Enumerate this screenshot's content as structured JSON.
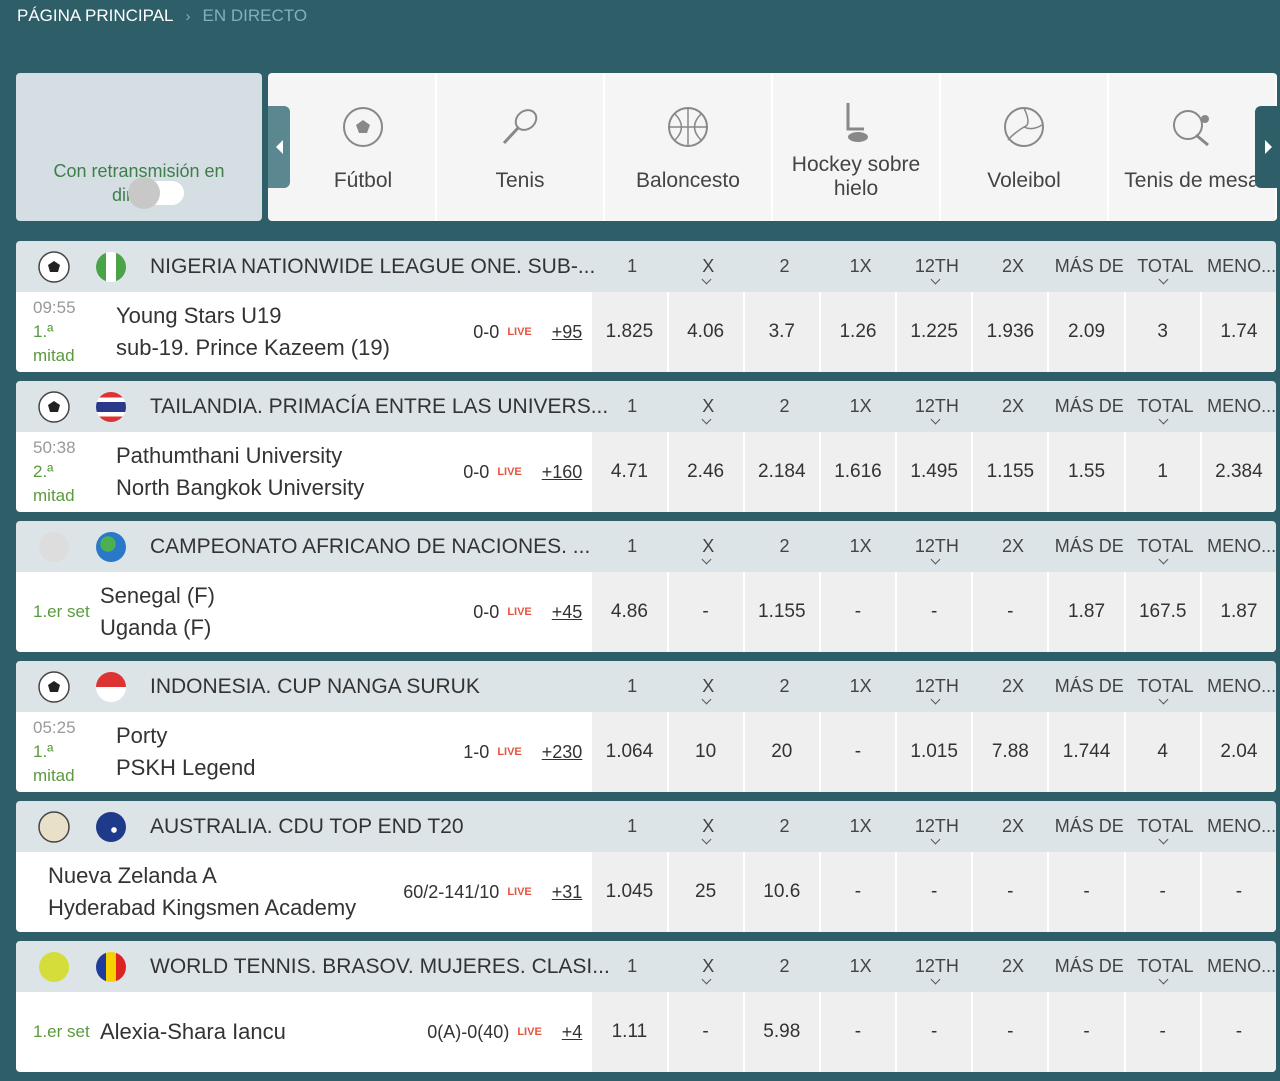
{
  "breadcrumb": [
    "PÁGINA PRINCIPAL",
    "EN DIRECTO"
  ],
  "live_toggle": "Con retransmisión en directo",
  "sports": [
    "Fútbol",
    "Tenis",
    "Baloncesto",
    "Hockey sobre hielo",
    "Voleibol",
    "Tenis de mesa"
  ],
  "columns": [
    "1",
    "X",
    "2",
    "1X",
    "12TH",
    "2X",
    "MÁS DE",
    "TOTAL",
    "MENO..."
  ],
  "live_label": "LIVE",
  "events": [
    {
      "league": "NIGERIA NATIONWIDE LEAGUE ONE. SUB-...",
      "time": "09:55",
      "period": "1.ª mitad",
      "teams": [
        "Young Stars U19",
        "sub-19. Prince Kazeem (19)"
      ],
      "score": "0-0",
      "more": "+95",
      "odds": [
        "1.825",
        "4.06",
        "3.7",
        "1.26",
        "1.225",
        "1.936",
        "2.09",
        "3",
        "1.74"
      ]
    },
    {
      "league": "TAILANDIA. PRIMACÍA ENTRE LAS UNIVERS...",
      "time": "50:38",
      "period": "2.ª mitad",
      "teams": [
        "Pathumthani University",
        "North Bangkok University"
      ],
      "score": "0-0",
      "more": "+160",
      "odds": [
        "4.71",
        "2.46",
        "2.184",
        "1.616",
        "1.495",
        "1.155",
        "1.55",
        "1",
        "2.384"
      ]
    },
    {
      "league": "CAMPEONATO AFRICANO DE NACIONES. ...",
      "period": "1.er set",
      "teams": [
        "Senegal (F)",
        "Uganda (F)"
      ],
      "score": "0-0",
      "more": "+45",
      "odds": [
        "4.86",
        "-",
        "1.155",
        "-",
        "-",
        "-",
        "1.87",
        "167.5",
        "1.87"
      ]
    },
    {
      "league": "INDONESIA. CUP NANGA SURUK",
      "time": "05:25",
      "period": "1.ª mitad",
      "teams": [
        "Porty",
        "PSKH Legend"
      ],
      "score": "1-0",
      "more": "+230",
      "odds": [
        "1.064",
        "10",
        "20",
        "-",
        "1.015",
        "7.88",
        "1.744",
        "4",
        "2.04"
      ]
    },
    {
      "league": "AUSTRALIA. CDU TOP END T20",
      "teams": [
        "Nueva Zelanda A",
        "Hyderabad Kingsmen Academy"
      ],
      "score": "60/2-141/10",
      "more": "+31",
      "odds": [
        "1.045",
        "25",
        "10.6",
        "-",
        "-",
        "-",
        "-",
        "-",
        "-"
      ]
    },
    {
      "league": "WORLD TENNIS. BRASOV. MUJERES. CLASI...",
      "period": "1.er set",
      "teams": [
        "Alexia-Shara Iancu"
      ],
      "score": "0(A)-0(40)",
      "more": "+4",
      "odds": [
        "1.11",
        "-",
        "5.98",
        "-",
        "-",
        "-",
        "-",
        "-",
        "-"
      ]
    }
  ]
}
